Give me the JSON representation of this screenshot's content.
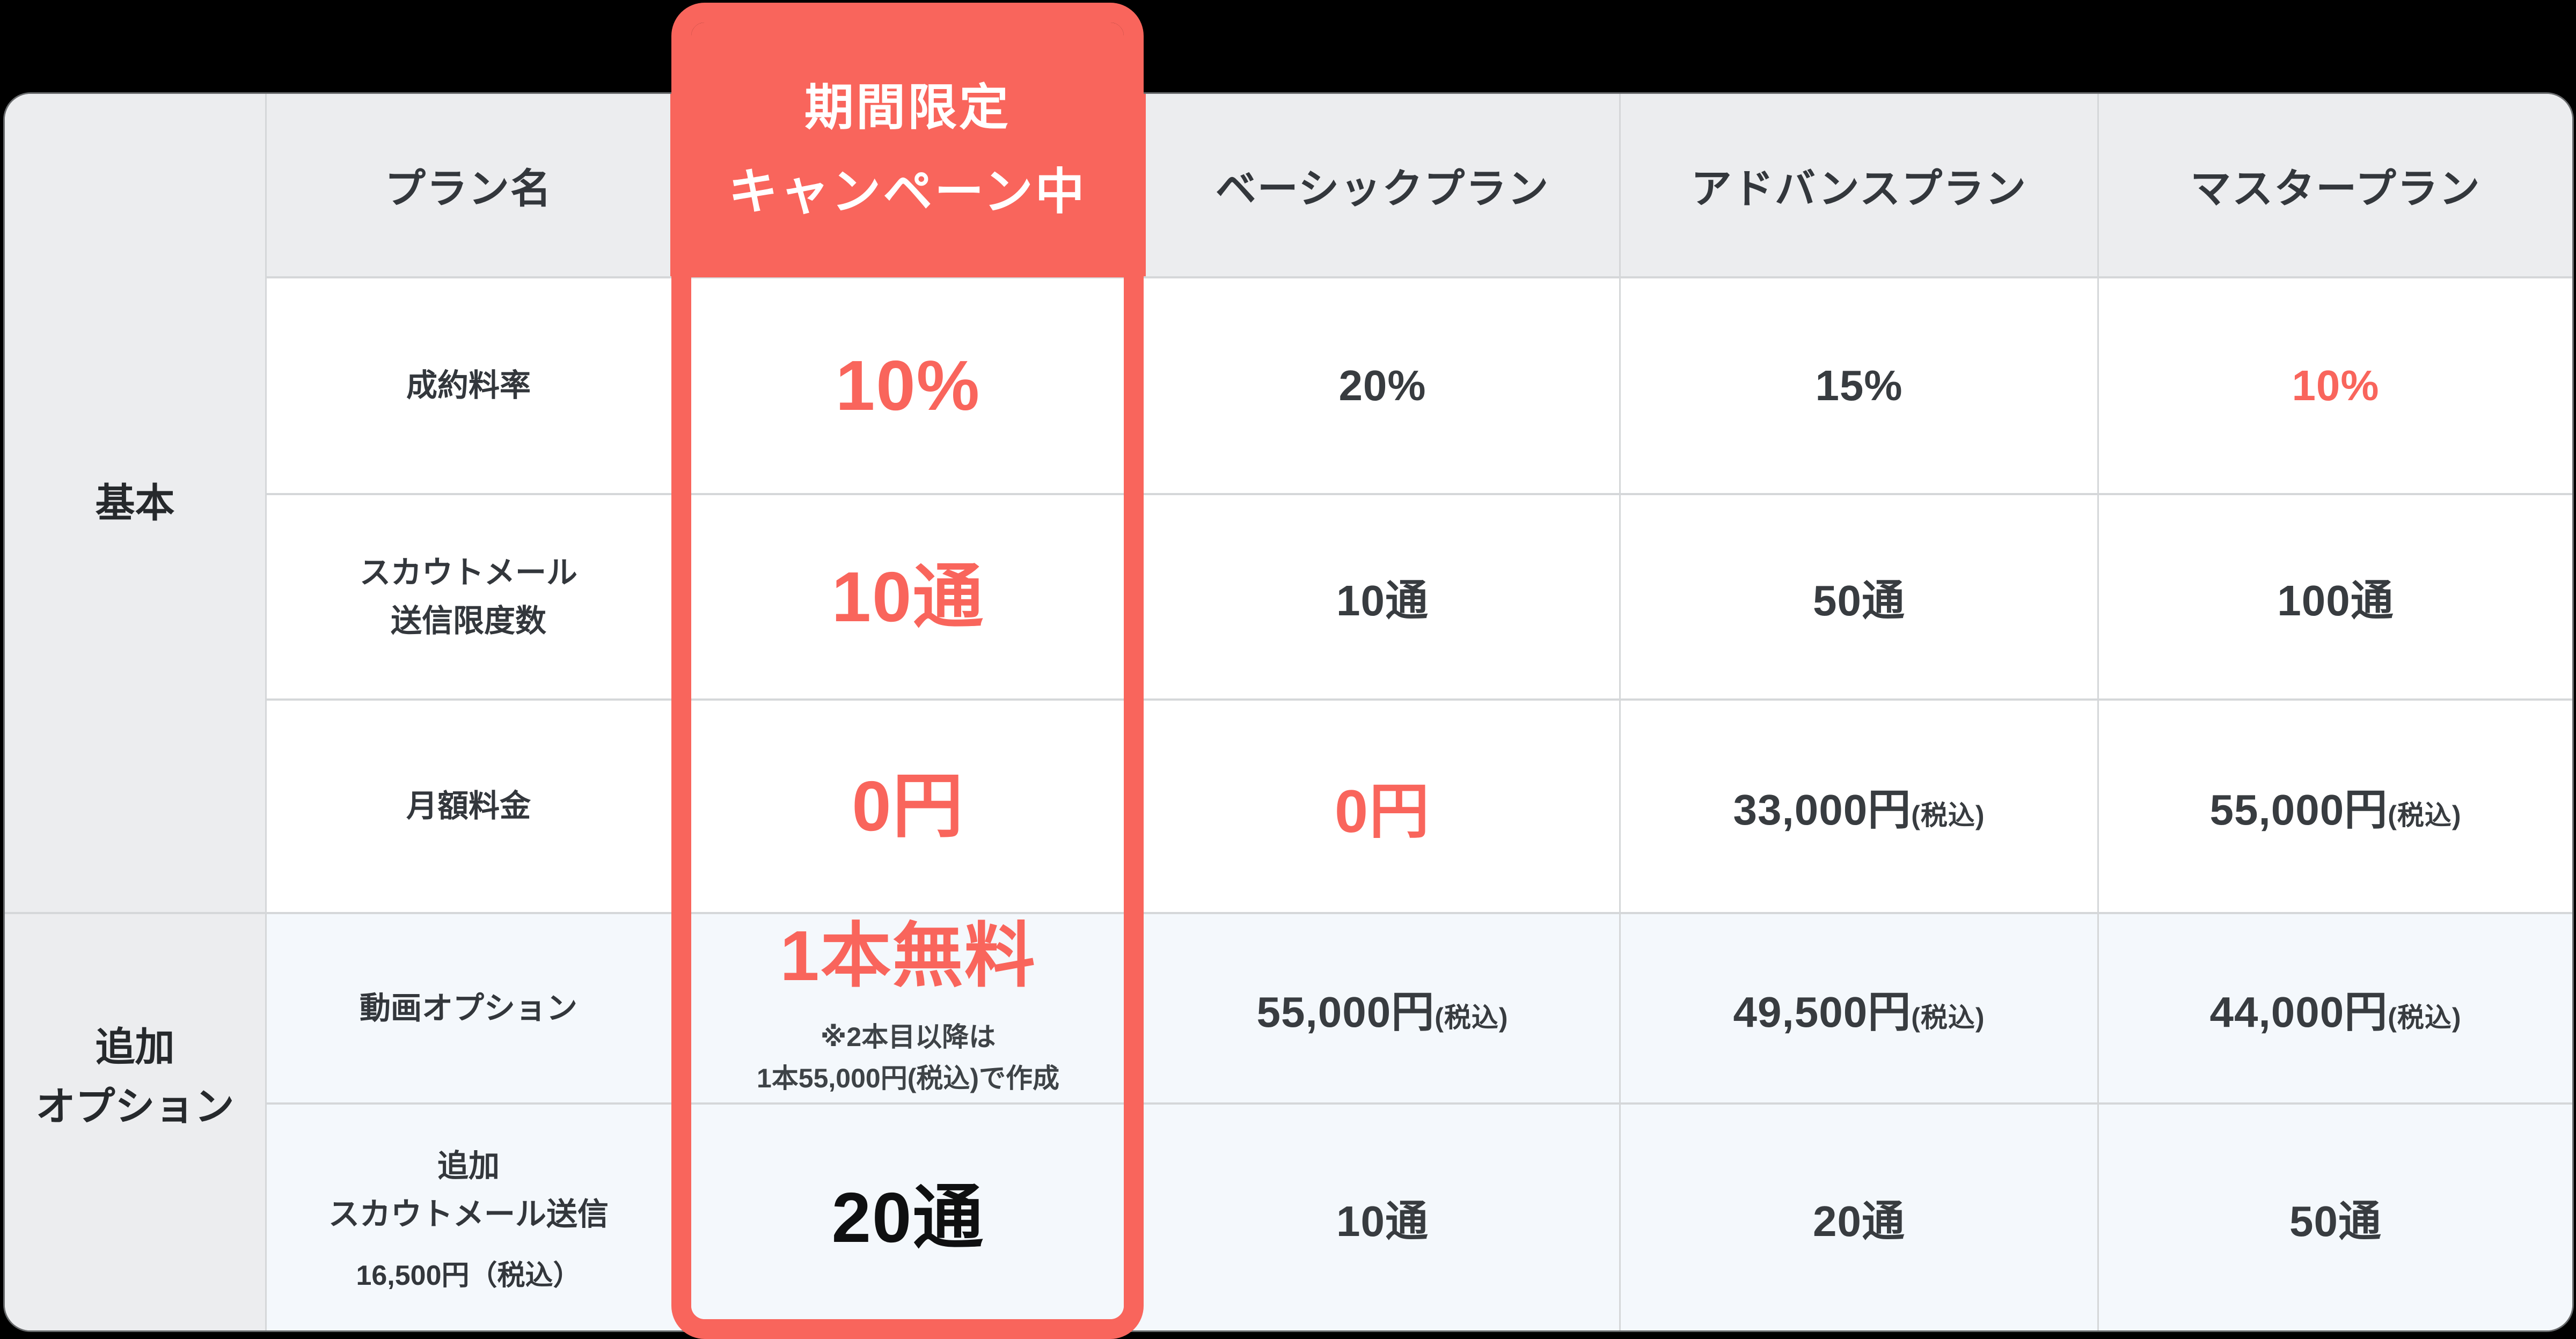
{
  "colors": {
    "accent": "#F9655C",
    "header_bg": "#ECEDEF",
    "alt_row_bg": "#F4F8FC",
    "grid_line": "#D5D7D9",
    "text": "#33373C",
    "note_text": "#3E4347",
    "badge_text": "#FFFFFF",
    "page_bg": "#000000"
  },
  "header": {
    "row_label_column_title": "プラン名",
    "campaign_badge": {
      "line1": "期間限定",
      "line2": "キャンペーン中"
    },
    "plans": [
      {
        "name": "ベーシックプラン"
      },
      {
        "name": "アドバンスプラン"
      },
      {
        "name": "マスタープラン"
      }
    ]
  },
  "sidebar": {
    "basic_group": "基本",
    "options_group": {
      "line1": "追加",
      "line2": "オプション"
    }
  },
  "rows": [
    {
      "label": "成約料率",
      "campaign": {
        "value": "10%"
      },
      "basic": {
        "value": "20%"
      },
      "advance": {
        "value": "15%"
      },
      "master": {
        "value": "10%"
      }
    },
    {
      "label": {
        "line1": "スカウトメール",
        "line2": "送信限度数"
      },
      "campaign": {
        "value": "10通"
      },
      "basic": {
        "value": "10通"
      },
      "advance": {
        "value": "50通"
      },
      "master": {
        "value": "100通"
      }
    },
    {
      "label": "月額料金",
      "campaign": {
        "value": "0円"
      },
      "basic": {
        "value": "0円"
      },
      "advance": {
        "value": "33,000円",
        "tax_suffix": "(税込)"
      },
      "master": {
        "value": "55,000円",
        "tax_suffix": "(税込)"
      }
    },
    {
      "label": "動画オプション",
      "campaign": {
        "value": "1本無料",
        "note": {
          "line1": "※2本目以降は",
          "line2": "1本55,000円(税込)で作成"
        }
      },
      "basic": {
        "value": "55,000円",
        "tax_suffix": "(税込)"
      },
      "advance": {
        "value": "49,500円",
        "tax_suffix": "(税込)"
      },
      "master": {
        "value": "44,000円",
        "tax_suffix": "(税込)"
      }
    },
    {
      "label": {
        "line1": "追加",
        "line2": "スカウトメール送信",
        "price_note": "16,500円（税込）"
      },
      "campaign": {
        "value": "20通"
      },
      "basic": {
        "value": "10通"
      },
      "advance": {
        "value": "20通"
      },
      "master": {
        "value": "50通"
      }
    }
  ]
}
